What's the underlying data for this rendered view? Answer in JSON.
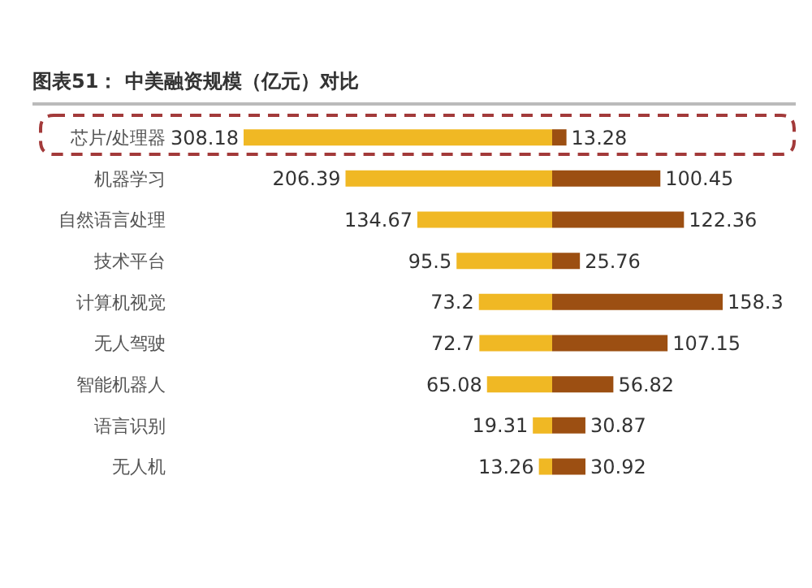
{
  "chart_data": [
    {
      "type": "bar",
      "title": "图表51：  中美融资规模（亿元）对比",
      "orientation": "horizontal",
      "categories": [
        "芯片/处理器",
        "机器学习",
        "自然语言处理",
        "技术平台",
        "计算机视觉",
        "无人驾驶",
        "智能机器人",
        "语言识别",
        "无人机"
      ],
      "series": [
        {
          "color": "#f0b824",
          "values": [
            308.18,
            206.39,
            134.67,
            95.5,
            73.2,
            72.7,
            65.08,
            19.31,
            13.26
          ]
        }
      ],
      "data_labels": true,
      "tick_labels": "y"
    },
    {
      "type": "bar",
      "orientation": "horizontal",
      "categories": [
        null,
        null,
        null,
        null,
        null,
        null,
        null,
        null,
        null
      ],
      "series": [
        {
          "color": "#9c4f12",
          "values": [
            13.28,
            100.45,
            122.36,
            25.76,
            158.3,
            107.15,
            56.82,
            30.87,
            30.92
          ]
        }
      ],
      "data_labels": true,
      "tick_labels": false
    }
  ]
}
